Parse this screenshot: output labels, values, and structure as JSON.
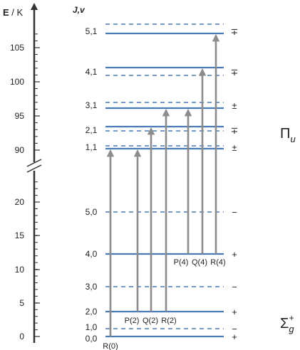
{
  "axis": {
    "label_E": "E",
    "label_sep": " / ",
    "label_K": "K",
    "upper_ticks": [
      "90",
      "95",
      "100",
      "105"
    ],
    "lower_ticks": [
      "0",
      "5",
      "10",
      "15",
      "20"
    ]
  },
  "jv_header": "J,v",
  "colors": {
    "level": "#4a7ab5",
    "arrow": "#8c8c8c",
    "axis": "#333333"
  },
  "levels": [
    {
      "label": "0,0",
      "style": "solid",
      "parity": "+"
    },
    {
      "label": "1,0",
      "style": "dashed",
      "parity": "−"
    },
    {
      "label": "2,0",
      "style": "solid",
      "parity": "+"
    },
    {
      "label": "3,0",
      "style": "dashed",
      "parity": "−"
    },
    {
      "label": "4,0",
      "style": "solid",
      "parity": "+"
    },
    {
      "label": "5,0",
      "style": "dashed",
      "parity": "−"
    },
    {
      "label": "1,1",
      "style": "pair",
      "parity": "±"
    },
    {
      "label": "2,1",
      "style": "pair",
      "parity": "∓"
    },
    {
      "label": "3,1",
      "style": "pair",
      "parity": "±"
    },
    {
      "label": "4,1",
      "style": "pair",
      "parity": "∓"
    },
    {
      "label": "5,1",
      "style": "pair",
      "parity": "∓"
    }
  ],
  "transitions": [
    {
      "label": "R(0)",
      "from": "0,0",
      "to": "1,1"
    },
    {
      "label": "P(2)",
      "from": "2,0",
      "to": "1,1"
    },
    {
      "label": "Q(2)",
      "from": "2,0",
      "to": "2,1"
    },
    {
      "label": "R(2)",
      "from": "2,0",
      "to": "3,1"
    },
    {
      "label": "P(4)",
      "from": "4,0",
      "to": "3,1"
    },
    {
      "label": "Q(4)",
      "from": "4,0",
      "to": "4,1"
    },
    {
      "label": "R(4)",
      "from": "4,0",
      "to": "5,1"
    }
  ],
  "states": {
    "upper": {
      "base": "Π",
      "sub": "u",
      "sup": ""
    },
    "lower": {
      "base": "Σ",
      "sub": "g",
      "sup": "+"
    }
  }
}
